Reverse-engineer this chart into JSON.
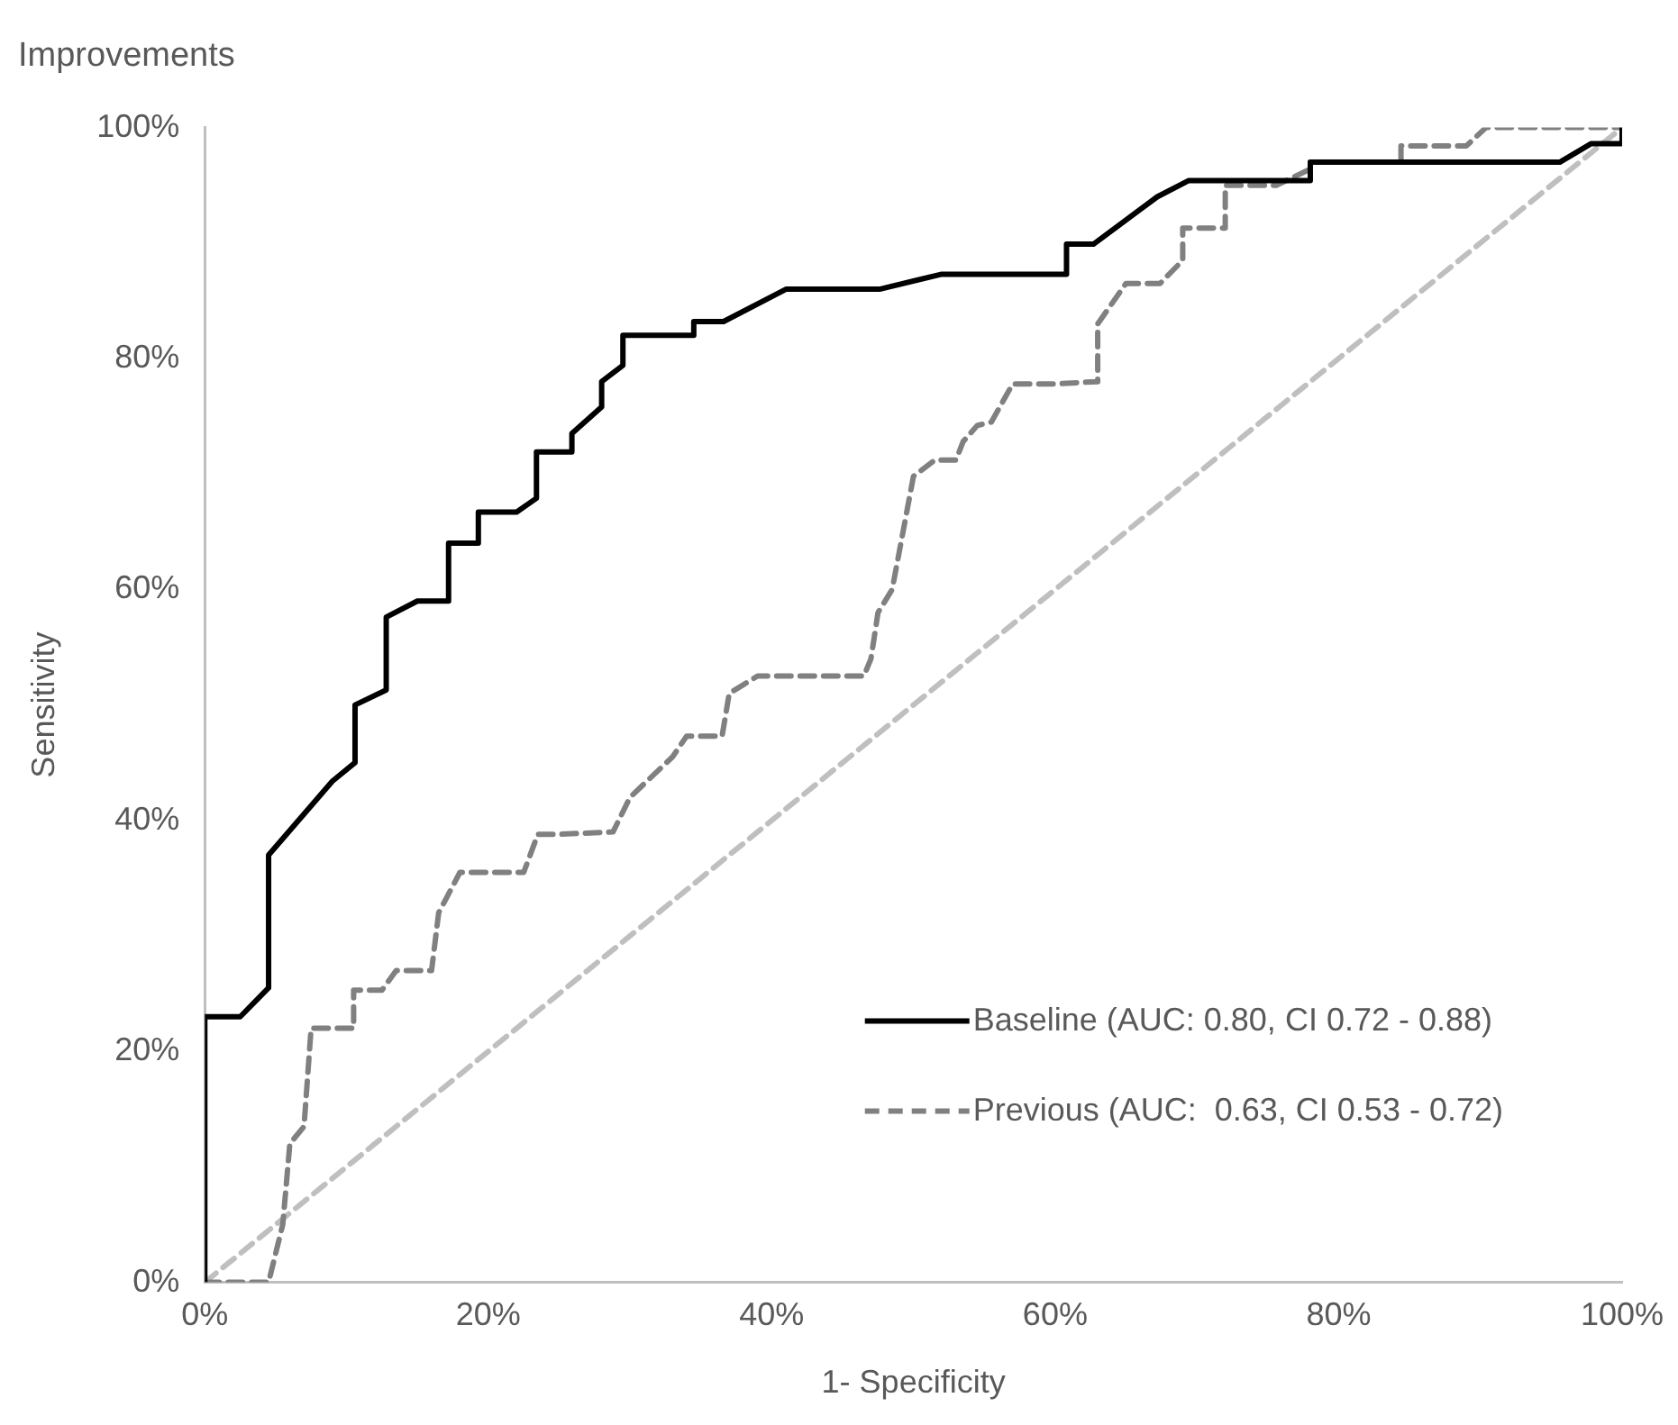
{
  "chart_data": {
    "type": "line",
    "title": "Improvements",
    "xlabel": "1- Specificity",
    "ylabel": "Sensitivity",
    "xlim": [
      0,
      100
    ],
    "ylim": [
      0,
      100
    ],
    "xticks": [
      {
        "value": 0,
        "label": "0%"
      },
      {
        "value": 20,
        "label": "20%"
      },
      {
        "value": 40,
        "label": "40%"
      },
      {
        "value": 60,
        "label": "60%"
      },
      {
        "value": 80,
        "label": "80%"
      },
      {
        "value": 100,
        "label": "100%"
      }
    ],
    "yticks": [
      {
        "value": 0,
        "label": "0%"
      },
      {
        "value": 20,
        "label": "20%"
      },
      {
        "value": 40,
        "label": "40%"
      },
      {
        "value": 60,
        "label": "60%"
      },
      {
        "value": 80,
        "label": "80%"
      },
      {
        "value": 100,
        "label": "100%"
      }
    ],
    "grid": false,
    "legend": "bottom right",
    "marker": "none",
    "series": [
      {
        "name": "Baseline (AUC: 0.80, CI 0.72 - 0.88)",
        "color": "#000000",
        "line_style": "solid",
        "x": [
          0,
          0,
          2.5,
          4.5,
          4.5,
          9,
          10.6,
          10.6,
          12.8,
          12.8,
          15,
          17.2,
          17.2,
          19.3,
          19.3,
          22,
          23.4,
          23.4,
          25.9,
          25.9,
          28,
          28,
          29.5,
          29.5,
          34.5,
          34.5,
          36.6,
          41,
          47.6,
          52,
          60.8,
          60.8,
          62.7,
          67.2,
          69.4,
          78,
          78,
          95.6,
          97.8,
          100,
          100
        ],
        "values": [
          0,
          23,
          23,
          25.5,
          37,
          43.4,
          45,
          50,
          51.3,
          57.6,
          59,
          59,
          64,
          64,
          66.7,
          66.7,
          67.9,
          71.9,
          71.9,
          73.5,
          75.8,
          78,
          79.4,
          82,
          82,
          83.2,
          83.2,
          86,
          86,
          87.3,
          87.3,
          89.9,
          89.9,
          94,
          95.4,
          95.4,
          97,
          97,
          98.6,
          98.6,
          100
        ]
      },
      {
        "name": "Previous (AUC:  0.63, CI 0.53 - 0.72)",
        "color": "#808080",
        "line_style": "dashed",
        "x": [
          0,
          4.5,
          5.5,
          6,
          7,
          7.5,
          10.5,
          10.5,
          12.5,
          13.5,
          16,
          16.5,
          18,
          22.5,
          23.5,
          25,
          28.8,
          30,
          33,
          34,
          36.5,
          37,
          39,
          46.5,
          47,
          47.5,
          48.5,
          50,
          51.5,
          53,
          53.5,
          54.5,
          55.5,
          57,
          60,
          63,
          63,
          65,
          67.4,
          69,
          69,
          72,
          72,
          75.6,
          78,
          78,
          84.4,
          84.4,
          89,
          90.4,
          100
        ],
        "values": [
          0,
          0,
          5,
          12,
          13.5,
          22,
          22,
          25.3,
          25.3,
          27,
          27,
          32,
          35.5,
          35.5,
          38.8,
          38.8,
          39,
          42,
          45.5,
          47.3,
          47.3,
          51,
          52.5,
          52.5,
          54,
          58,
          60,
          69.8,
          71.2,
          71.2,
          72.8,
          74.2,
          74.5,
          77.8,
          77.8,
          78,
          83,
          86.5,
          86.5,
          88.5,
          91.3,
          91.3,
          95,
          95,
          96.4,
          97,
          97,
          98.4,
          98.4,
          100,
          100
        ]
      },
      {
        "color": "#bfbfbf",
        "line_style": "dashed",
        "x": [
          0,
          100
        ],
        "values": [
          0,
          100
        ]
      }
    ]
  }
}
